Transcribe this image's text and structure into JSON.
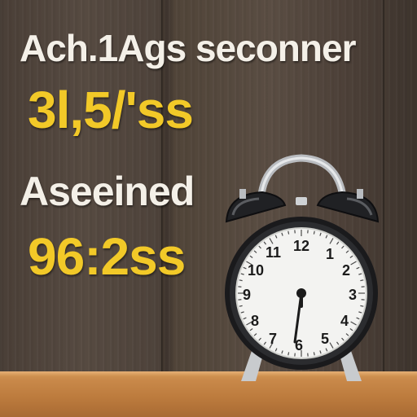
{
  "text": {
    "line1": "Ach.1Ags seconner",
    "line2": "3l,5/'ss",
    "line3": "Aseeined",
    "line4": "96:2ss"
  },
  "clock": {
    "numerals": [
      "12",
      "1",
      "2",
      "3",
      "4",
      "5",
      "6",
      "7",
      "8",
      "9",
      "10",
      "11"
    ]
  },
  "colors": {
    "white_text": "#f4f0e8",
    "yellow_text": "#f2c928",
    "wood_wall": "#4e433b",
    "shelf": "#c9894a",
    "clock_body": "#1a1a1c",
    "clock_face": "#f3f3f1"
  }
}
